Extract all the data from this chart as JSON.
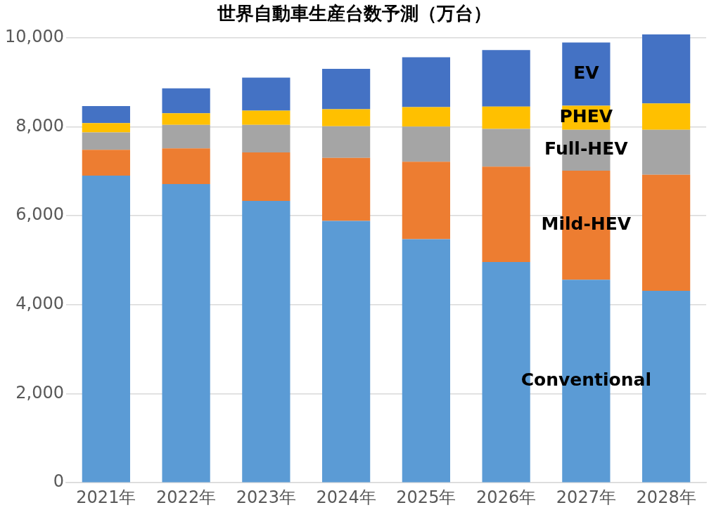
{
  "chart_data": {
    "type": "bar",
    "stacked": true,
    "title": "世界自動車生産台数予測（万台）",
    "categories": [
      "2021年",
      "2022年",
      "2023年",
      "2024年",
      "2025年",
      "2026年",
      "2027年",
      "2028年"
    ],
    "series": [
      {
        "name": "Conventional",
        "color": "#5b9bd5",
        "values": [
          6900,
          6710,
          6330,
          5880,
          5470,
          4960,
          4560,
          4310
        ]
      },
      {
        "name": "Mild-HEV",
        "color": "#ed7d31",
        "values": [
          580,
          800,
          1090,
          1420,
          1740,
          2140,
          2450,
          2610
        ]
      },
      {
        "name": "Full-HEV",
        "color": "#a5a5a5",
        "values": [
          390,
          530,
          620,
          710,
          790,
          850,
          920,
          1010
        ]
      },
      {
        "name": "PHEV",
        "color": "#ffc000",
        "values": [
          210,
          260,
          320,
          380,
          440,
          500,
          540,
          590
        ]
      },
      {
        "name": "EV",
        "color": "#4472c4",
        "values": [
          380,
          560,
          740,
          910,
          1120,
          1270,
          1420,
          1550
        ]
      }
    ],
    "ylim": [
      0,
      10100
    ],
    "yticks": [
      0,
      {
        "value": 2000,
        "label": "2,000"
      },
      {
        "value": 4000,
        "label": "4,000"
      },
      {
        "value": 6000,
        "label": "6,000"
      },
      {
        "value": 8000,
        "label": "8,000"
      },
      {
        "value": 10000,
        "label": "10,000"
      }
    ],
    "grid": "y",
    "legend": false
  }
}
